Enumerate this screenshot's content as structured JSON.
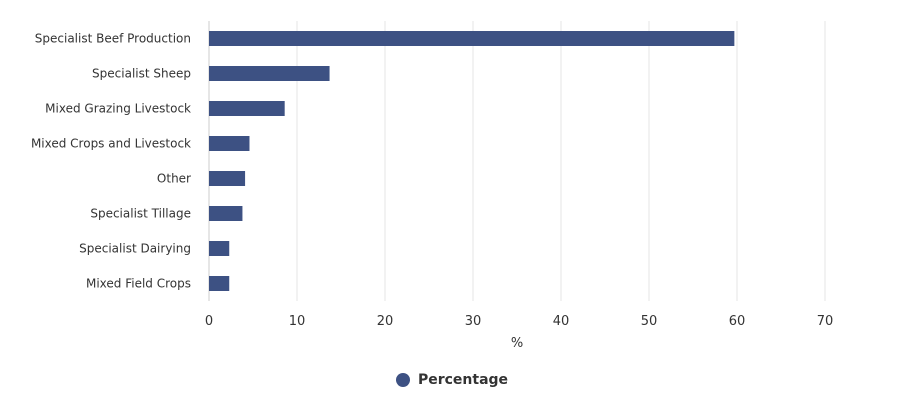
{
  "chart_data": {
    "type": "bar",
    "orientation": "horizontal",
    "categories": [
      "Specialist Beef Production",
      "Specialist Sheep",
      "Mixed Grazing Livestock",
      "Mixed Crops and Livestock",
      "Other",
      "Specialist Tillage",
      "Specialist Dairying",
      "Mixed Field Crops"
    ],
    "series": [
      {
        "name": "Percentage",
        "values": [
          59.7,
          13.7,
          8.6,
          4.6,
          4.1,
          3.8,
          2.3,
          2.3
        ]
      }
    ],
    "xlabel": "%",
    "ylabel": "",
    "xlim": [
      0,
      70
    ],
    "xticks": [
      0,
      10,
      20,
      30,
      40,
      50,
      60,
      70
    ],
    "grid": true,
    "legend_position": "bottom-center",
    "colors": {
      "bar": "#3d5183",
      "grid": "#e6e6e6",
      "axis": "#cccccc",
      "text": "#333333"
    }
  }
}
